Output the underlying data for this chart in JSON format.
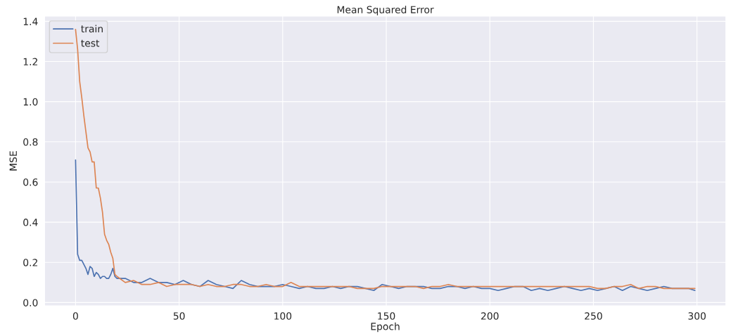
{
  "chart_data": {
    "type": "line",
    "title": "Mean Squared Error",
    "xlabel": "Epoch",
    "ylabel": "MSE",
    "xlim": [
      -14.95,
      313.95
    ],
    "xticks": [
      0,
      50,
      100,
      150,
      200,
      250,
      300
    ],
    "ylim": [
      -0.016,
      1.426
    ],
    "yticks": [
      {
        "value": 0,
        "label": "0.0"
      },
      {
        "value": 0.2,
        "label": "0.2"
      },
      {
        "value": 0.4,
        "label": "0.4"
      },
      {
        "value": 0.6,
        "label": "0.6"
      },
      {
        "value": 0.8,
        "label": "0.8"
      },
      {
        "value": 1.0,
        "label": "1.0"
      },
      {
        "value": 1.2,
        "label": "1.2"
      },
      {
        "value": 1.4,
        "label": "1.4"
      }
    ],
    "grid": true,
    "legend": "top left",
    "marker": "none",
    "line_style": "solid",
    "series": [
      {
        "name": "train",
        "color": "#4c72b0",
        "x": [
          0,
          1,
          2,
          3,
          4,
          5,
          6,
          7,
          8,
          9,
          10,
          11,
          12,
          13,
          14,
          15,
          16,
          17,
          18,
          19,
          20,
          24,
          28,
          32,
          36,
          40,
          44,
          48,
          52,
          56,
          60,
          64,
          68,
          72,
          76,
          80,
          84,
          88,
          92,
          96,
          100,
          104,
          108,
          112,
          116,
          120,
          124,
          128,
          132,
          136,
          140,
          144,
          148,
          152,
          156,
          160,
          164,
          168,
          172,
          176,
          180,
          184,
          188,
          192,
          196,
          200,
          204,
          208,
          212,
          216,
          220,
          224,
          228,
          232,
          236,
          240,
          244,
          248,
          252,
          256,
          260,
          264,
          268,
          272,
          276,
          280,
          284,
          288,
          292,
          296,
          299
        ],
        "values": [
          0.71,
          0.24,
          0.21,
          0.21,
          0.19,
          0.17,
          0.14,
          0.18,
          0.17,
          0.13,
          0.15,
          0.14,
          0.12,
          0.13,
          0.13,
          0.12,
          0.12,
          0.14,
          0.17,
          0.13,
          0.12,
          0.12,
          0.1,
          0.1,
          0.12,
          0.1,
          0.1,
          0.09,
          0.11,
          0.09,
          0.08,
          0.11,
          0.09,
          0.08,
          0.07,
          0.11,
          0.09,
          0.08,
          0.08,
          0.08,
          0.09,
          0.08,
          0.07,
          0.08,
          0.07,
          0.07,
          0.08,
          0.07,
          0.08,
          0.08,
          0.07,
          0.06,
          0.09,
          0.08,
          0.07,
          0.08,
          0.08,
          0.08,
          0.07,
          0.07,
          0.08,
          0.08,
          0.07,
          0.08,
          0.07,
          0.07,
          0.06,
          0.07,
          0.08,
          0.08,
          0.06,
          0.07,
          0.06,
          0.07,
          0.08,
          0.07,
          0.06,
          0.07,
          0.06,
          0.07,
          0.08,
          0.06,
          0.08,
          0.07,
          0.06,
          0.07,
          0.08,
          0.07,
          0.07,
          0.07,
          0.06
        ]
      },
      {
        "name": "test",
        "color": "#dd8452",
        "x": [
          0,
          1,
          2,
          3,
          4,
          5,
          6,
          7,
          8,
          9,
          10,
          11,
          12,
          13,
          14,
          15,
          16,
          17,
          18,
          19,
          20,
          24,
          28,
          32,
          36,
          40,
          44,
          48,
          52,
          56,
          60,
          64,
          68,
          72,
          76,
          80,
          84,
          88,
          92,
          96,
          100,
          104,
          108,
          112,
          116,
          120,
          124,
          128,
          132,
          136,
          140,
          144,
          148,
          152,
          156,
          160,
          164,
          168,
          172,
          176,
          180,
          184,
          188,
          192,
          196,
          200,
          204,
          208,
          212,
          216,
          220,
          224,
          228,
          232,
          236,
          240,
          244,
          248,
          252,
          256,
          260,
          264,
          268,
          272,
          276,
          280,
          284,
          288,
          292,
          296,
          299
        ],
        "values": [
          1.36,
          1.26,
          1.1,
          1.02,
          0.93,
          0.85,
          0.77,
          0.75,
          0.7,
          0.7,
          0.57,
          0.57,
          0.52,
          0.45,
          0.34,
          0.31,
          0.29,
          0.25,
          0.22,
          0.14,
          0.13,
          0.1,
          0.11,
          0.09,
          0.09,
          0.1,
          0.08,
          0.09,
          0.09,
          0.09,
          0.08,
          0.09,
          0.08,
          0.08,
          0.09,
          0.09,
          0.08,
          0.08,
          0.09,
          0.08,
          0.08,
          0.1,
          0.08,
          0.08,
          0.08,
          0.08,
          0.08,
          0.08,
          0.08,
          0.07,
          0.07,
          0.07,
          0.08,
          0.08,
          0.08,
          0.08,
          0.08,
          0.07,
          0.08,
          0.08,
          0.09,
          0.08,
          0.08,
          0.08,
          0.08,
          0.08,
          0.08,
          0.08,
          0.08,
          0.08,
          0.08,
          0.08,
          0.08,
          0.08,
          0.08,
          0.08,
          0.08,
          0.08,
          0.07,
          0.07,
          0.08,
          0.08,
          0.09,
          0.07,
          0.08,
          0.08,
          0.07,
          0.07,
          0.07,
          0.07,
          0.07
        ]
      }
    ]
  }
}
